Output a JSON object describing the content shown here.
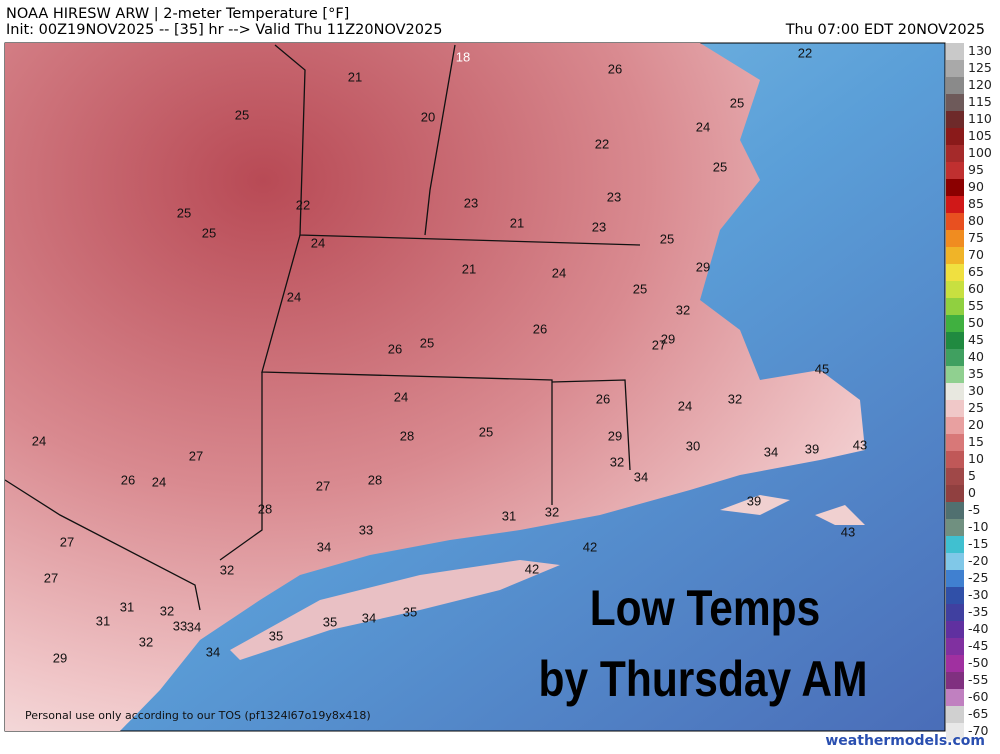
{
  "header": {
    "title": "NOAA HIRESW ARW | 2-meter Temperature [°F]",
    "init": "Init: 00Z19NOV2025 -- [35] hr --> Valid Thu 11Z20NOV2025",
    "valid": "Thu 07:00 EDT 20NOV2025"
  },
  "map": {
    "labels": [
      18,
      26,
      22,
      21,
      25,
      20,
      25,
      24,
      22,
      25,
      25,
      22,
      23,
      23,
      25,
      21,
      23,
      24,
      25,
      21,
      24,
      29,
      24,
      25,
      32,
      26,
      25,
      26,
      27,
      29,
      45,
      24,
      26,
      32,
      24,
      28,
      25,
      29,
      30,
      24,
      27,
      34,
      39,
      43,
      32,
      34,
      26,
      24,
      27,
      28,
      39,
      28,
      31,
      32,
      33,
      43,
      27,
      34,
      42,
      32,
      42,
      27,
      31,
      32,
      35,
      34,
      35,
      31,
      33,
      34,
      32,
      35,
      34,
      29
    ],
    "overlay": [
      "Low Temps",
      "by Thursday AM"
    ],
    "footer": "Personal use only according to our TOS (pf1324l67o19y8x418)"
  },
  "colorbar": {
    "labels": [
      130,
      125,
      120,
      115,
      110,
      105,
      100,
      95,
      90,
      85,
      80,
      75,
      70,
      65,
      60,
      55,
      50,
      45,
      40,
      35,
      30,
      25,
      20,
      15,
      10,
      5,
      0,
      -5,
      -10,
      -15,
      -20,
      -25,
      -30,
      -35,
      -40,
      -45,
      -50,
      -55,
      -60,
      -65,
      -70
    ],
    "colors": [
      "#c9c9c9",
      "#a9a9a9",
      "#8a8a8a",
      "#6e5a5a",
      "#6e2a2a",
      "#8a1a1a",
      "#a52a2a",
      "#c03030",
      "#8b0000",
      "#d01818",
      "#e85020",
      "#f08c20",
      "#f0b428",
      "#f0e040",
      "#c8e040",
      "#90d040",
      "#40b040",
      "#208a40",
      "#40a060",
      "#90d090",
      "#e8e8e0",
      "#f0c8c8",
      "#e8a0a0",
      "#d87878",
      "#c05858",
      "#a04848",
      "#904040",
      "#507070",
      "#709080",
      "#40c0d0",
      "#80c8e8",
      "#4080d0",
      "#3050a8",
      "#4040a0",
      "#6030a0",
      "#8030a0",
      "#a030a0",
      "#803080",
      "#c080c0",
      "#d0d0d0",
      "#e8e8e8"
    ]
  },
  "site": "weathermodels.com"
}
